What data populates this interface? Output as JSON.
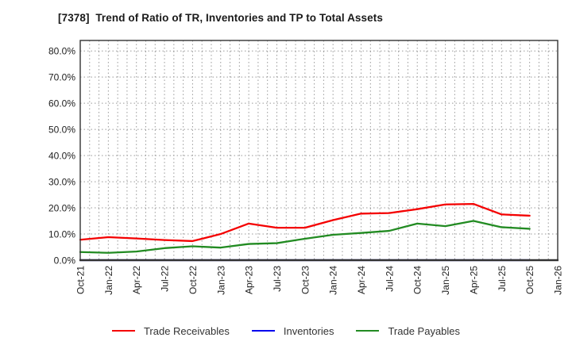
{
  "title": "[7378]  Trend of Ratio of TR, Inventories and TP to Total Assets",
  "chart_data": {
    "type": "line",
    "title": "[7378]  Trend of Ratio of TR, Inventories and TP to Total Assets",
    "xlabel": "",
    "ylabel": "",
    "ylim": [
      0,
      84
    ],
    "grid": true,
    "legend_position": "bottom",
    "x_axis_tick_labels": [
      "Oct-21",
      "Jan-22",
      "Apr-22",
      "Jul-22",
      "Oct-22",
      "Jan-23",
      "Apr-23",
      "Jul-23",
      "Oct-23",
      "Jan-24",
      "Apr-24",
      "Jul-24",
      "Oct-24",
      "Jan-25",
      "Apr-25",
      "Jul-25",
      "Oct-25",
      "Jan-26"
    ],
    "y_tick_values": [
      0,
      10,
      20,
      30,
      40,
      50,
      60,
      70,
      80
    ],
    "y_tick_labels": [
      "0.0%",
      "10.0%",
      "20.0%",
      "30.0%",
      "40.0%",
      "50.0%",
      "60.0%",
      "70.0%",
      "80.0%"
    ],
    "categories": [
      "Oct-21",
      "Jan-22",
      "Apr-22",
      "Jul-22",
      "Oct-22",
      "Jan-23",
      "Apr-23",
      "Jul-23",
      "Oct-23",
      "Jan-24",
      "Apr-24",
      "Jul-24",
      "Oct-24",
      "Jan-25",
      "Apr-25",
      "Jul-25",
      "Oct-25"
    ],
    "unit": "percent_of_total_assets",
    "series": [
      {
        "name": "Trade Receivables",
        "color": "#f40000",
        "values": [
          7.8,
          8.8,
          8.3,
          7.7,
          7.3,
          10.0,
          14.0,
          12.4,
          12.4,
          15.3,
          17.8,
          18.0,
          19.5,
          21.3,
          21.5,
          17.5,
          17.0
        ]
      },
      {
        "name": "Inventories",
        "color": "#0000ee",
        "values": [
          0.0,
          0.0,
          0.0,
          0.0,
          0.0,
          0.0,
          0.0,
          0.0,
          0.0,
          0.0,
          0.0,
          0.0,
          0.0,
          0.0,
          0.0,
          0.0,
          0.0
        ]
      },
      {
        "name": "Trade Payables",
        "color": "#228b22",
        "values": [
          3.1,
          2.8,
          3.3,
          4.6,
          5.3,
          4.8,
          6.2,
          6.5,
          8.2,
          9.7,
          10.4,
          11.2,
          14.0,
          13.0,
          15.0,
          12.6,
          12.0
        ]
      }
    ]
  },
  "colors": {
    "grid": "#999999",
    "spine": "#333333",
    "tick_label": "#222222",
    "title_text": "#1a1a1a",
    "legend_text": "#333333",
    "background": "#ffffff"
  }
}
